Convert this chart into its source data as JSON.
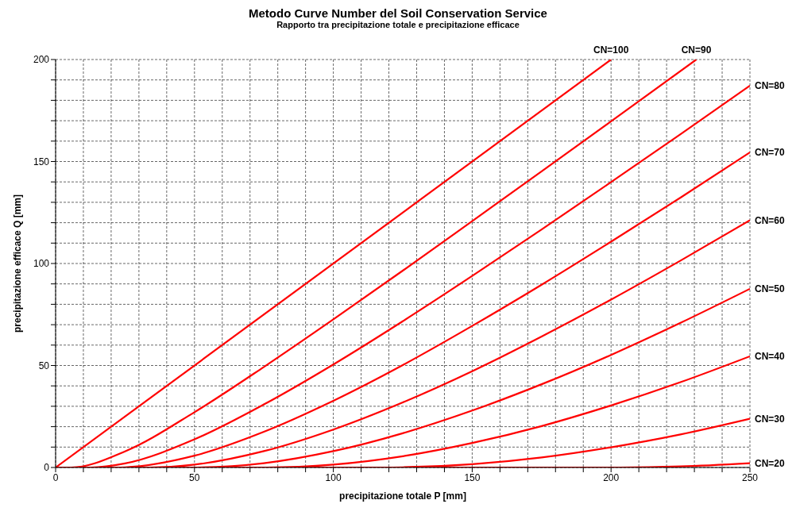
{
  "chart_data": {
    "type": "line",
    "title": "Metodo Curve Number del Soil Conservation Service",
    "subtitle": "Rapporto tra precipitazione totale e precipitazione efficace",
    "xlabel": "precipitazione totale P  [mm]",
    "ylabel": "precipitazione efficace Q  [mm]",
    "xlim": [
      0,
      250
    ],
    "ylim": [
      0,
      200
    ],
    "xticks": [
      0,
      {
        "value": 10,
        "label": null
      },
      {
        "value": 20,
        "label": null
      },
      {
        "value": 30,
        "label": null
      },
      {
        "value": 40,
        "label": null
      },
      50,
      {
        "value": 60,
        "label": null
      },
      {
        "value": 70,
        "label": null
      },
      {
        "value": 80,
        "label": null
      },
      {
        "value": 90,
        "label": null
      },
      100,
      {
        "value": 110,
        "label": null
      },
      {
        "value": 120,
        "label": null
      },
      {
        "value": 130,
        "label": null
      },
      {
        "value": 140,
        "label": null
      },
      150,
      {
        "value": 160,
        "label": null
      },
      {
        "value": 170,
        "label": null
      },
      {
        "value": 180,
        "label": null
      },
      {
        "value": 190,
        "label": null
      },
      200,
      {
        "value": 210,
        "label": null
      },
      {
        "value": 220,
        "label": null
      },
      {
        "value": 230,
        "label": null
      },
      {
        "value": 240,
        "label": null
      },
      250
    ],
    "yticks": [
      0,
      {
        "value": 10,
        "label": null
      },
      {
        "value": 20,
        "label": null
      },
      {
        "value": 30,
        "label": null
      },
      {
        "value": 40,
        "label": null
      },
      50,
      {
        "value": 60,
        "label": null
      },
      {
        "value": 70,
        "label": null
      },
      {
        "value": 80,
        "label": null
      },
      {
        "value": 90,
        "label": null
      },
      100,
      {
        "value": 110,
        "label": null
      },
      {
        "value": 120,
        "label": null
      },
      {
        "value": 130,
        "label": null
      },
      {
        "value": 140,
        "label": null
      },
      150,
      {
        "value": 160,
        "label": null
      },
      {
        "value": 170,
        "label": null
      },
      {
        "value": 180,
        "label": null
      },
      {
        "value": 190,
        "label": null
      },
      200
    ],
    "grid": true,
    "marker": "none",
    "line_style": "solid",
    "series": [
      {
        "name": "CN=100",
        "color": "#ff0000",
        "x": [
          0,
          200
        ],
        "values": [
          0,
          200
        ]
      },
      {
        "name": "CN=90",
        "color": "#ff0000",
        "x": [
          0,
          5.6,
          25,
          50,
          75,
          100,
          125,
          150,
          175,
          200,
          230.7
        ],
        "values": [
          0,
          0,
          7.9,
          27.1,
          49.3,
          72.6,
          96.5,
          120.8,
          145.2,
          169.7,
          200
        ]
      },
      {
        "name": "CN=80",
        "color": "#ff0000",
        "x": [
          0,
          12.7,
          25,
          50,
          75,
          100,
          125,
          150,
          175,
          200,
          225,
          250
        ],
        "values": [
          0,
          0,
          2,
          13.8,
          30.9,
          50.5,
          71.7,
          93.9,
          116.7,
          139.9,
          163.4,
          187.2
        ]
      },
      {
        "name": "CN=70",
        "color": "#ff0000",
        "x": [
          0,
          21.8,
          25,
          50,
          75,
          100,
          125,
          150,
          175,
          200,
          225,
          250
        ],
        "values": [
          0,
          0,
          0.1,
          5.8,
          17.5,
          32.7,
          50.2,
          69.4,
          89.6,
          110.7,
          132.3,
          154.5
        ]
      },
      {
        "name": "CN=60",
        "color": "#ff0000",
        "x": [
          0,
          33.9,
          50,
          75,
          100,
          125,
          150,
          175,
          200,
          225,
          250
        ],
        "values": [
          0,
          0,
          1.4,
          8,
          18.6,
          31.9,
          47.2,
          64.2,
          82.3,
          101.4,
          121.2
        ]
      },
      {
        "name": "CN=50",
        "color": "#ff0000",
        "x": [
          0,
          50.8,
          75,
          100,
          125,
          150,
          175,
          200,
          225,
          250
        ],
        "values": [
          0,
          0,
          2.1,
          8,
          16.8,
          27.9,
          40.8,
          55.2,
          70.9,
          87.6
        ]
      },
      {
        "name": "CN=40",
        "color": "#ff0000",
        "x": [
          0,
          76.2,
          100,
          125,
          150,
          175,
          200,
          225,
          250
        ],
        "values": [
          0,
          0,
          1.4,
          5.5,
          12,
          20.3,
          30.4,
          41.8,
          54.5
        ]
      },
      {
        "name": "CN=30",
        "color": "#ff0000",
        "x": [
          0,
          118.5,
          125,
          150,
          175,
          200,
          225,
          250
        ],
        "values": [
          0,
          0,
          0.1,
          1.6,
          4.9,
          9.9,
          16.2,
          23.9
        ]
      },
      {
        "name": "CN=20",
        "color": "#ff0000",
        "x": [
          0,
          203.2,
          225,
          250
        ],
        "values": [
          0,
          0,
          0.5,
          2.1
        ]
      }
    ]
  }
}
